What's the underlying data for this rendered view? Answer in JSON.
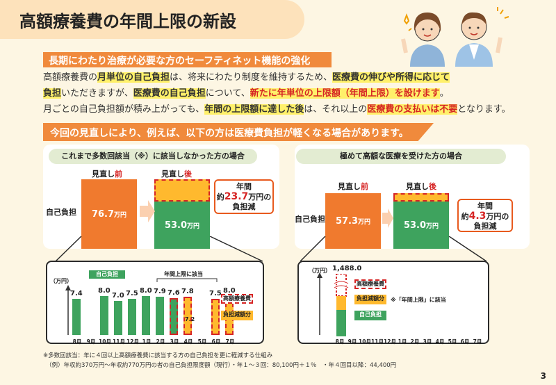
{
  "title": "高額療養費の年間上限の新設",
  "subtitle": "長期にわたり治療が必要な方のセーフティネット機能の強化",
  "intro": {
    "l1a": "高額療養費の",
    "l1b": "月単位の自己負担",
    "l1c": "は、将来にわたり制度を維持するため、",
    "l1d": "医療費の伸びや所得に応じて",
    "l2a": "負担",
    "l2b": "いただきますが、",
    "l2c": "医療費の自己負担",
    "l2d": "について、",
    "l2e": "新たに年単位の上限額（年間上限）を設けます",
    "l2f": "。",
    "l3a": "月ごとの自己負担額が積み上がっても、",
    "l3b": "年間の上限額に達した後",
    "l3c": "は、それ以上の",
    "l3d": "医療費の支払いは不要",
    "l3e": "となります。"
  },
  "banner": "今回の見直しにより、例えば、以下の方は医療費負担が軽くなる場合があります。",
  "left_case": {
    "heading": "これまで多数回該当（※）に該当しなかった方の場合",
    "before_label": "見直し",
    "before_mark": "前",
    "after_label": "見直し",
    "after_mark": "後",
    "row_label": "自己負担",
    "before_value": "76.7",
    "after_value": "53.0",
    "unit": "万円",
    "callout_1": "年間",
    "callout_2a": "約",
    "callout_2b": "23.7",
    "callout_2c": "万円の",
    "callout_3": "負担減"
  },
  "right_case": {
    "heading": "極めて高額な医療を受けた方の場合",
    "before_label": "見直し",
    "before_mark": "前",
    "after_label": "見直し",
    "after_mark": "後",
    "row_label": "自己負担",
    "before_value": "57.3",
    "after_value": "53.0",
    "unit": "万円",
    "callout_1": "年間",
    "callout_2a": "約",
    "callout_2b": "4.3",
    "callout_2c": "万円の",
    "callout_3": "負担減"
  },
  "left_detail": {
    "yunit": "（万円）",
    "legend_own": "自己負担",
    "legend_cap": "年間上限に該当",
    "legend_kogaku": "高額療養費",
    "legend_reduce": "負担減額分",
    "months": [
      "8月",
      "9月",
      "10月",
      "11月",
      "12月",
      "1月",
      "2月",
      "3月",
      "4月",
      "5月",
      "6月",
      "7月"
    ],
    "values": [
      "7.4",
      "",
      "8.0",
      "7.0",
      "7.5",
      "8.0",
      "7.9",
      "7.6",
      "7.8",
      "",
      "7.5",
      "8.0"
    ],
    "inner_value": "7.2"
  },
  "right_detail": {
    "yunit": "（万円）",
    "big_value": "1,488.0",
    "legend_kogaku": "高額療養費",
    "legend_reduce": "負担減額分",
    "legend_own": "自己負担",
    "cap_note": "※「年間上限」に該当",
    "months": [
      "8月",
      "9月",
      "10月",
      "11月",
      "12月",
      "1月",
      "2月",
      "3月",
      "4月",
      "5月",
      "6月",
      "7月"
    ]
  },
  "footnote_1": "※多数回該当：年に４回以上高額療養費に該当する方の自己負担を更に軽減する仕組み",
  "footnote_2": "（例）年収約370万円～年収約770万円の者の自己負担限度額（現行）・年１～３回：80,100円＋１％　・年４回目以降：44,400円",
  "page_number": "3",
  "colors": {
    "accent": "#f08a3c",
    "own": "#3ea35e",
    "reduce": "#ffb92e",
    "before": "#f07a2e",
    "alert": "#d62424"
  }
}
